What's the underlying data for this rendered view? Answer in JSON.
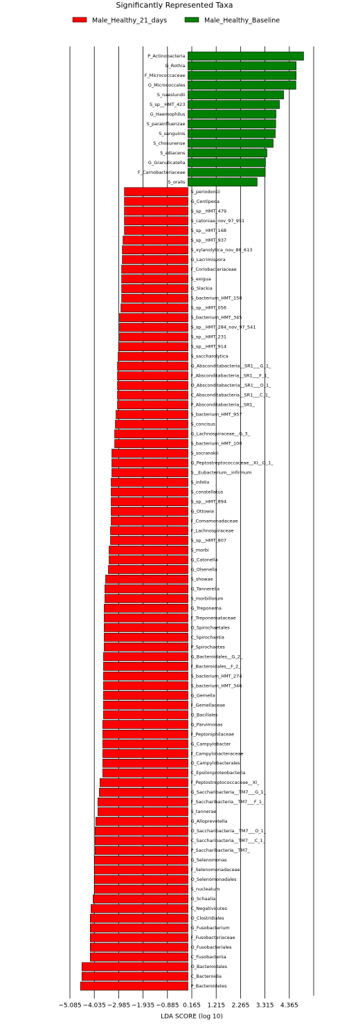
{
  "chart_data": {
    "type": "hbar",
    "title": "Significantly Represented Taxa",
    "xlabel": "LDA SCORE (log 10)",
    "categories": [
      "P_Actinobacteria",
      "G_Rothia",
      "F_Micrococcaceae",
      "O_Micrococcales",
      "S_naeslundii",
      "S_sp__HMT_423",
      "G_Haemophilus",
      "S_parainfluenzae",
      "S_sanguinis",
      "S_chosunense",
      "S_adiacens",
      "G_Granulicatella",
      "F_Carnobacteriaceae",
      "S_oralis",
      "S_periodontii",
      "G_Centipeda",
      "S_sp__HMT_479",
      "S_catoniae_nov_97_951",
      "S_sp__HMT_168",
      "S_sp__HMT_937",
      "S_xylanolytica_nov_88_613",
      "G_Lacrimispora",
      "F_Coriobacteriaceae",
      "S_exigua",
      "G_Slackia",
      "S_bacterium_HMT_150",
      "S_sp__HMT_056",
      "S_bacterium_HMT_345",
      "S_sp__HMT_284_nov_97_541",
      "S_sp__HMT_231",
      "S_sp__HMT_914",
      "S_saccharolytica",
      "G_Absconditabacteria__SR1___G_1_",
      "F_Absconditabacteria__SR1___F_1_",
      "O_Absconditabacteria__SR1___O_1_",
      "C_Absconditabacteria__SR1___C_1_",
      "P_Absconditabacteria__SR1_",
      "S_bacterium_HMT_957",
      "S_concisus",
      "G_Lachnospiraceae__G_3_",
      "S_bacterium_HMT_100",
      "S_socranskii",
      "G_Peptostreptococcaceae__XI__G_1_",
      "S__Eubacterium__infirmum",
      "S_infelix",
      "S_constellatus",
      "S_sp__HMT_894",
      "G_Ottowia",
      "F_Comamonadaceae",
      "F_Lachnospiraceae",
      "S_sp__HMT_807",
      "S_morbi",
      "G_Catonella",
      "G_Olsenella",
      "S_showae",
      "G_Tannerella",
      "S_morbillorum",
      "G_Treponema",
      "F_Treponemataceae",
      "O_Spirochaetales",
      "C_Spirochaetia",
      "P_Spirochaetes",
      "G_Bacteroidales__G_2_",
      "F_Bacteroidales__F_2_",
      "S_bacterium_HMT_274",
      "S_bacterium_HMT_346",
      "G_Gemella",
      "F_Gemellaceae",
      "O_Bacillales",
      "G_Parvimonas",
      "F_Peptoniphilaceae",
      "G_Campylobacter",
      "F_Campylobacteraceae",
      "O_Campylobacterales",
      "C_Epsilonproteobacteria",
      "F_Peptostreptococcaceae__XI_",
      "G_Saccharibacteria__TM7___G_1_",
      "F_Saccharibacteria__TM7___F_1_",
      "S_tannerae",
      "G_Alloprevotella",
      "O_Saccharibacteria__TM7___O_1_",
      "C_Saccharibacteria__TM7___C_1_",
      "P_Saccharibacteria__TM7_",
      "G_Selenomonas",
      "F_Selenomonadaceae",
      "O_Selenomonadales",
      "S_nucleatum",
      "G_Schaalia",
      "C_Negativicutes",
      "O_Clostridiales",
      "G_Fusobacterium",
      "F_Fusobacteriaceae",
      "O_Fusobacteriales",
      "C_Fusobacteriia",
      "O_Bacteroidales",
      "C_Bacteroidia",
      "P_Bacteroidetes"
    ],
    "series": [
      {
        "name": "Male_Healthy_21_days",
        "color": "#ff0000",
        "values": [
          null,
          null,
          null,
          null,
          null,
          null,
          null,
          null,
          null,
          null,
          null,
          null,
          null,
          null,
          -2.74,
          -2.74,
          -2.74,
          -2.74,
          -2.74,
          -2.8,
          -2.83,
          -2.83,
          -2.86,
          -2.86,
          -2.86,
          -2.86,
          -2.89,
          -2.95,
          -2.95,
          -2.95,
          -2.98,
          -3.01,
          -3.04,
          -3.04,
          -3.04,
          -3.04,
          -3.04,
          -3.1,
          -3.13,
          -3.16,
          -3.16,
          -3.28,
          -3.28,
          -3.28,
          -3.31,
          -3.31,
          -3.31,
          -3.31,
          -3.31,
          -3.34,
          -3.34,
          -3.4,
          -3.4,
          -3.43,
          -3.55,
          -3.58,
          -3.58,
          -3.61,
          -3.61,
          -3.61,
          -3.61,
          -3.61,
          -3.64,
          -3.64,
          -3.64,
          -3.64,
          -3.64,
          -3.64,
          -3.64,
          -3.67,
          -3.67,
          -3.67,
          -3.67,
          -3.67,
          -3.67,
          -3.79,
          -3.82,
          -3.88,
          -3.88,
          -3.97,
          -4.0,
          -4.0,
          -4.0,
          -4.03,
          -4.03,
          -4.03,
          -4.03,
          -4.09,
          -4.18,
          -4.21,
          -4.21,
          -4.21,
          -4.21,
          -4.21,
          -4.57,
          -4.57,
          -4.63
        ]
      },
      {
        "name": "Male_Healthy_Baseline",
        "color": "#008000",
        "values": [
          4.98,
          4.66,
          4.66,
          4.65,
          4.12,
          3.94,
          3.79,
          3.78,
          3.76,
          3.67,
          3.4,
          3.34,
          3.33,
          2.98,
          null,
          null,
          null,
          null,
          null,
          null,
          null,
          null,
          null,
          null,
          null,
          null,
          null,
          null,
          null,
          null,
          null,
          null,
          null,
          null,
          null,
          null,
          null,
          null,
          null,
          null,
          null,
          null,
          null,
          null,
          null,
          null,
          null,
          null,
          null,
          null,
          null,
          null,
          null,
          null,
          null,
          null,
          null,
          null,
          null,
          null,
          null,
          null,
          null,
          null,
          null,
          null,
          null,
          null,
          null,
          null,
          null,
          null,
          null,
          null,
          null,
          null,
          null,
          null,
          null,
          null,
          null,
          null,
          null,
          null,
          null,
          null,
          null,
          null,
          null,
          null,
          null,
          null,
          null,
          null,
          null,
          null,
          null
        ]
      }
    ],
    "xlim": [
      -5.085,
      5.415
    ],
    "xticks": [
      {
        "value": -5.085,
        "label": "−5.085"
      },
      {
        "value": -4.035,
        "label": "−4.035"
      },
      {
        "value": -2.985,
        "label": "−2.985"
      },
      {
        "value": -1.935,
        "label": "−1.935"
      },
      {
        "value": -0.885,
        "label": "−0.885"
      },
      0.165,
      1.215,
      2.265,
      3.315,
      4.365
    ],
    "grid": true
  }
}
